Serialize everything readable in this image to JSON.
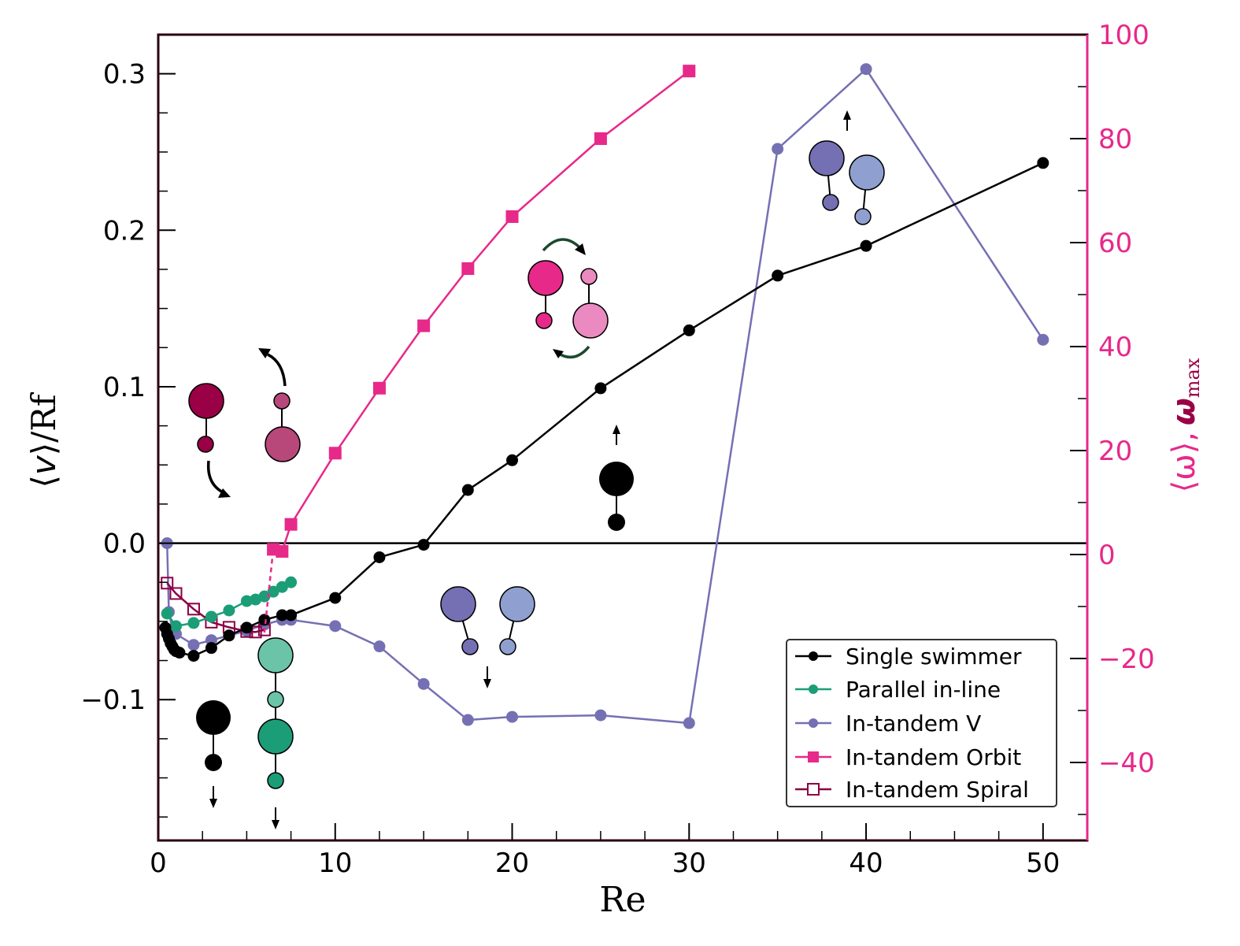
{
  "chart_data": {
    "type": "line",
    "xlabel": "Re",
    "ylabel_left": {
      "open": "⟨",
      "var": "v",
      "close": "⟩/Rf"
    },
    "ylabel_right": {
      "omega_avg": "⟨ω⟩",
      "sep": ",",
      "omega_max": "ω",
      "sub": "max"
    },
    "xlim": [
      0,
      52.5
    ],
    "ylim_left": [
      -0.19,
      0.325
    ],
    "ylim_right": [
      -55,
      100
    ],
    "x_ticks": [
      0,
      10,
      20,
      30,
      40,
      50
    ],
    "x_tick_labels": [
      "0",
      "10",
      "20",
      "30",
      "40",
      "50"
    ],
    "y_left_ticks": [
      -0.1,
      0.0,
      0.1,
      0.2,
      0.3
    ],
    "y_left_tick_labels": [
      "−0.1",
      "0.0",
      "0.1",
      "0.2",
      "0.3"
    ],
    "y_right_ticks": [
      -40,
      -20,
      0,
      20,
      40,
      60,
      80,
      100
    ],
    "y_right_tick_labels": [
      "−40",
      "−20",
      "0",
      "20",
      "40",
      "60",
      "80",
      "100"
    ],
    "zero_line": 0,
    "legend_position": "bottom-right",
    "colors": {
      "single": "#000000",
      "parallel": "#1b9e77",
      "v": "#7570b3",
      "orbit": "#e7298a",
      "spiral": "#8b0045",
      "axis_frame": "#2a0010",
      "right_axis": "#e7298a"
    },
    "series": [
      {
        "name": "Single swimmer",
        "axis": "left",
        "marker": "circle",
        "color": "#000000",
        "x": [
          0.4,
          0.5,
          0.6,
          0.7,
          0.8,
          0.9,
          1.0,
          1.2,
          2.0,
          3.0,
          4.0,
          5.0,
          6.0,
          7.0,
          7.5,
          10.0,
          12.5,
          15.0,
          17.5,
          20.0,
          25.0,
          30.0,
          35.0,
          40.0,
          50.0
        ],
        "y": [
          -0.054,
          -0.058,
          -0.061,
          -0.064,
          -0.066,
          -0.068,
          -0.069,
          -0.07,
          -0.072,
          -0.067,
          -0.059,
          -0.054,
          -0.049,
          -0.046,
          -0.046,
          -0.035,
          -0.009,
          -0.001,
          0.034,
          0.053,
          0.099,
          0.136,
          0.171,
          0.19,
          0.243
        ]
      },
      {
        "name": "Parallel in-line",
        "axis": "left",
        "marker": "circle",
        "color": "#1b9e77",
        "x": [
          0.5,
          1.0,
          2.0,
          3.0,
          4.0,
          5.0,
          5.5,
          6.0,
          6.5,
          7.0,
          7.5
        ],
        "y": [
          -0.045,
          -0.053,
          -0.051,
          -0.047,
          -0.043,
          -0.037,
          -0.036,
          -0.034,
          -0.031,
          -0.028,
          -0.025
        ]
      },
      {
        "name": "In-tandem V",
        "axis": "left",
        "marker": "circle",
        "color": "#7570b3",
        "x": [
          0.5,
          0.6,
          0.8,
          1.0,
          2.0,
          3.0,
          4.0,
          5.0,
          6.0,
          7.0,
          7.5,
          10.0,
          12.5,
          15.0,
          17.5,
          20.0,
          25.0,
          30.0,
          35.0,
          40.0,
          50.0
        ],
        "y": [
          0.0,
          -0.044,
          -0.055,
          -0.058,
          -0.065,
          -0.062,
          -0.059,
          -0.056,
          -0.052,
          -0.049,
          -0.049,
          -0.053,
          -0.066,
          -0.09,
          -0.113,
          -0.111,
          -0.11,
          -0.115,
          0.252,
          0.303,
          0.13
        ]
      },
      {
        "name": "In-tandem Orbit",
        "axis": "right",
        "marker": "square",
        "color": "#e7298a",
        "dashed_from_first_point": {
          "x": 6.0,
          "y": -15
        },
        "x": [
          6.5,
          7.0,
          7.5,
          10.0,
          12.5,
          15.0,
          17.5,
          20.0,
          25.0,
          30.0
        ],
        "y": [
          1,
          0.6,
          5.8,
          19.5,
          32,
          44,
          55,
          65,
          80,
          93
        ]
      },
      {
        "name": "In-tandem Spiral",
        "axis": "right",
        "marker": "square-open",
        "color": "#8b0045",
        "x": [
          0.5,
          1.0,
          2.0,
          3.0,
          4.0,
          5.0,
          5.5,
          6.0
        ],
        "y": [
          -5.5,
          -7.5,
          -10.5,
          -13,
          -14,
          -14.8,
          -14.9,
          -14.5
        ]
      }
    ]
  }
}
